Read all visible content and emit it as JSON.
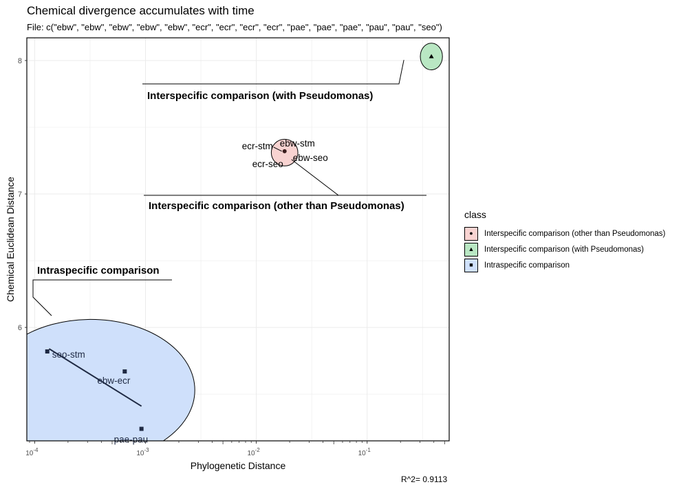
{
  "title": "Chemical divergence accumulates with time",
  "subtitle": "File: c(\"ebw\", \"ebw\", \"ebw\", \"ebw\", \"ebw\", \"ecr\", \"ecr\", \"ecr\", \"ecr\", \"pae\", \"pae\", \"pae\", \"pau\", \"pau\", \"seo\")",
  "footnote": "R^2= 0.9113",
  "legend": {
    "title": "class",
    "items": [
      {
        "label": "Interspecific comparison (other than Pseudomonas)",
        "fill": "#f8d3d1",
        "marker": "●"
      },
      {
        "label": "Interspecific comparison (with Pseudomonas)",
        "fill": "#b9e7c3",
        "marker": "▲"
      },
      {
        "label": "Intraspecific comparison",
        "fill": "#cfe0fb",
        "marker": "■"
      }
    ]
  },
  "chart_data": {
    "type": "scatter",
    "title": "Chemical divergence accumulates with time",
    "xlabel": "Phylogenetic Distance",
    "ylabel": "Chemical Euclidean Distance",
    "x_scale": "log10",
    "xlim": [
      8.5e-05,
      0.55
    ],
    "ylim": [
      5.15,
      8.17
    ],
    "x_ticks": [
      {
        "value": 0.0001,
        "base": "10",
        "exp": "-4"
      },
      {
        "value": 0.001,
        "base": "10",
        "exp": "-3"
      },
      {
        "value": 0.01,
        "base": "10",
        "exp": "-2"
      },
      {
        "value": 0.1,
        "base": "10",
        "exp": "-1"
      }
    ],
    "y_ticks": [
      6,
      7,
      8
    ],
    "grid": true,
    "colors": {
      "other": "#f8d3d1",
      "pseudomonas": "#b9e7c3",
      "intra": "#cfe0fb",
      "fit": "#1f2a44",
      "grid": "#ebebeb"
    },
    "points": [
      {
        "x": 0.00013,
        "y": 5.82,
        "class": "intra",
        "label": "seo-stm"
      },
      {
        "x": 0.00065,
        "y": 5.67,
        "class": "intra",
        "label": "ebw-ecr"
      },
      {
        "x": 0.00092,
        "y": 5.24,
        "class": "intra",
        "label": "pae-pau"
      },
      {
        "x": 0.018,
        "y": 7.32,
        "class": "other",
        "label": "ecr-stm"
      },
      {
        "x": 0.018,
        "y": 7.32,
        "class": "other",
        "label": "ebw-stm"
      },
      {
        "x": 0.018,
        "y": 7.32,
        "class": "other",
        "label": "ebw-seo"
      },
      {
        "x": 0.018,
        "y": 7.32,
        "class": "other",
        "label": "ecr-seo"
      },
      {
        "x": 0.38,
        "y": 8.03,
        "class": "pseudomonas",
        "label": ""
      }
    ],
    "fit_line": {
      "x": [
        0.000135,
        0.00092
      ],
      "y": [
        5.84,
        5.41
      ]
    },
    "ellipses": [
      {
        "class": "intra",
        "cx": 0.00032,
        "cy": 5.53,
        "rx_decades": 0.94,
        "ry": 0.53
      },
      {
        "class": "other",
        "cx": 0.018,
        "cy": 7.31,
        "rx_decades": 0.12,
        "ry": 0.1
      },
      {
        "class": "pseudomonas",
        "cx": 0.38,
        "cy": 8.03,
        "rx_decades": 0.1,
        "ry": 0.1
      }
    ],
    "annotations": [
      {
        "text": "Interspecific comparison (with Pseudomonas)",
        "tip_x": 0.38,
        "tip_y": 8.03
      },
      {
        "text": "Interspecific comparison (other than Pseudomonas)",
        "tip_x": 0.018,
        "tip_y": 7.31
      },
      {
        "text": "Intraspecific comparison",
        "tip_x": 0.00013,
        "tip_y": 6.06
      }
    ]
  }
}
